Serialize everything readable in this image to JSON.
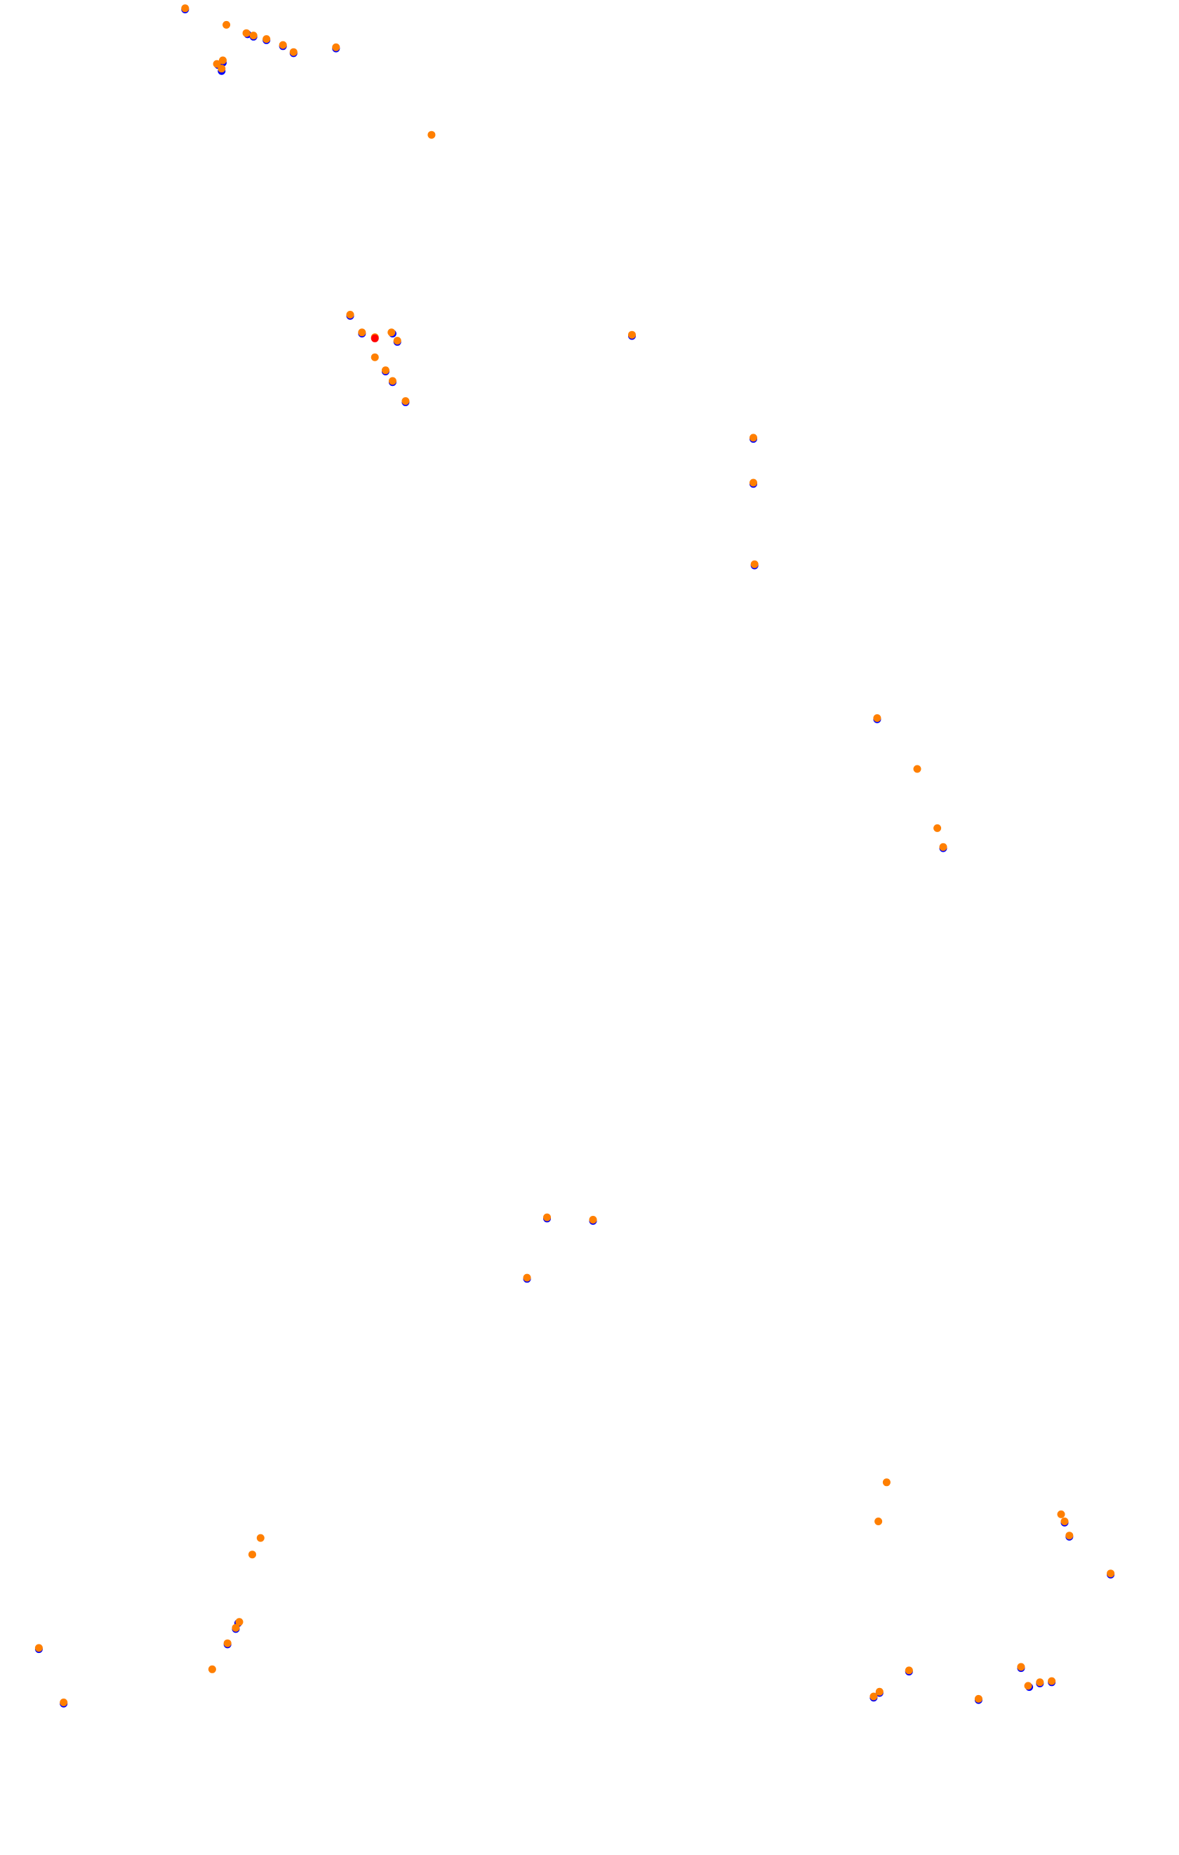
{
  "chart_data": {
    "type": "scatter",
    "title": "",
    "xlabel": "",
    "ylabel": "",
    "grid": false,
    "legend": "none",
    "axes_visible": false,
    "xlim": [
      0,
      1000
    ],
    "ylim": [
      1568,
      0
    ],
    "colors": {
      "primary": "#0000ff",
      "secondary": "#ff7f00",
      "highlight": "#ff0000"
    },
    "series": [
      {
        "color": "#0000ff",
        "points": [
          [
            157,
            8
          ],
          [
            210,
            29
          ],
          [
            215,
            31
          ],
          [
            226,
            34
          ],
          [
            240,
            39
          ],
          [
            249,
            45
          ],
          [
            285,
            41
          ],
          [
            185,
            55
          ],
          [
            189,
            53
          ],
          [
            188,
            60
          ],
          [
            297,
            267
          ],
          [
            307,
            282
          ],
          [
            333,
            282
          ],
          [
            337,
            289
          ],
          [
            327,
            314
          ],
          [
            333,
            323
          ],
          [
            344,
            340
          ],
          [
            536,
            284
          ],
          [
            639,
            371
          ],
          [
            639,
            409
          ],
          [
            640,
            478
          ],
          [
            744,
            608
          ],
          [
            800,
            717
          ],
          [
            464,
            1030
          ],
          [
            503,
            1032
          ],
          [
            447,
            1081
          ],
          [
            33,
            1394
          ],
          [
            54,
            1440
          ],
          [
            193,
            1390
          ],
          [
            202,
            1372
          ],
          [
            200,
            1377
          ],
          [
            903,
            1287
          ],
          [
            907,
            1299
          ],
          [
            942,
            1331
          ],
          [
            741,
            1435
          ],
          [
            746,
            1431
          ],
          [
            771,
            1413
          ],
          [
            830,
            1437
          ],
          [
            866,
            1410
          ],
          [
            873,
            1426
          ],
          [
            882,
            1423
          ],
          [
            892,
            1422
          ]
        ]
      },
      {
        "color": "#ff7f00",
        "points": [
          [
            157,
            7
          ],
          [
            192,
            21
          ],
          [
            209,
            28
          ],
          [
            215,
            30
          ],
          [
            226,
            33
          ],
          [
            240,
            38
          ],
          [
            249,
            44
          ],
          [
            285,
            40
          ],
          [
            184,
            54
          ],
          [
            189,
            51
          ],
          [
            188,
            58
          ],
          [
            366,
            114
          ],
          [
            297,
            266
          ],
          [
            307,
            281
          ],
          [
            318,
            285
          ],
          [
            332,
            281
          ],
          [
            337,
            288
          ],
          [
            318,
            302
          ],
          [
            327,
            313
          ],
          [
            333,
            322
          ],
          [
            344,
            339
          ],
          [
            536,
            283
          ],
          [
            639,
            370
          ],
          [
            639,
            408
          ],
          [
            640,
            477
          ],
          [
            744,
            607
          ],
          [
            778,
            650
          ],
          [
            795,
            700
          ],
          [
            800,
            716
          ],
          [
            464,
            1029
          ],
          [
            503,
            1031
          ],
          [
            447,
            1080
          ],
          [
            221,
            1300
          ],
          [
            214,
            1314
          ],
          [
            33,
            1393
          ],
          [
            54,
            1439
          ],
          [
            180,
            1411
          ],
          [
            193,
            1389
          ],
          [
            203,
            1371
          ],
          [
            200,
            1376
          ],
          [
            752,
            1253
          ],
          [
            745,
            1286
          ],
          [
            900,
            1280
          ],
          [
            903,
            1286
          ],
          [
            907,
            1298
          ],
          [
            942,
            1330
          ],
          [
            741,
            1434
          ],
          [
            746,
            1430
          ],
          [
            771,
            1412
          ],
          [
            830,
            1436
          ],
          [
            866,
            1409
          ],
          [
            872,
            1425
          ],
          [
            882,
            1422
          ],
          [
            892,
            1421
          ]
        ]
      },
      {
        "color": "#ff0000",
        "points": [
          [
            318,
            286
          ]
        ]
      }
    ]
  }
}
